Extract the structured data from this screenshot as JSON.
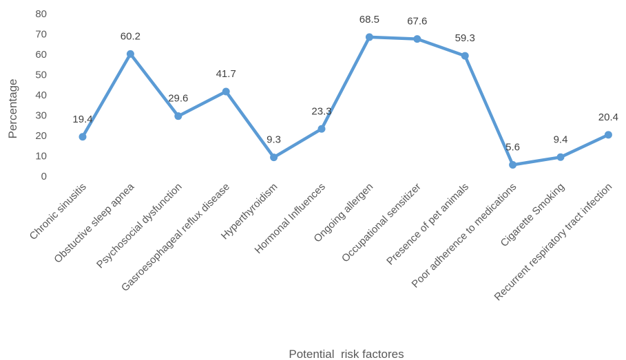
{
  "chart_data": {
    "type": "line",
    "title": "",
    "xlabel": "Potential  risk factores",
    "ylabel": "Percentage",
    "ylim": [
      0,
      80
    ],
    "yticks": [
      0,
      10,
      20,
      30,
      40,
      50,
      60,
      70,
      80
    ],
    "grid": false,
    "legend": "none",
    "categories": [
      "Chronic sinusitis",
      "Obstuctive sleep apnea",
      "Psychosocial dysfunction",
      "Gasroesophageal reflux disease",
      "Hyperthyroidism",
      "Hormonal Influences",
      "Ongoing allergen",
      "Occupational sensitizer",
      "Presence of pet animals",
      "Poor adherence to medications",
      "Cigarette Smoking",
      "Recurrent respiratory tract infection"
    ],
    "series": [
      {
        "values": [
          19.4,
          60.2,
          29.6,
          41.7,
          9.3,
          23.3,
          68.5,
          67.6,
          59.3,
          5.6,
          9.4,
          20.4
        ],
        "color": "#5B9BD5"
      }
    ]
  }
}
